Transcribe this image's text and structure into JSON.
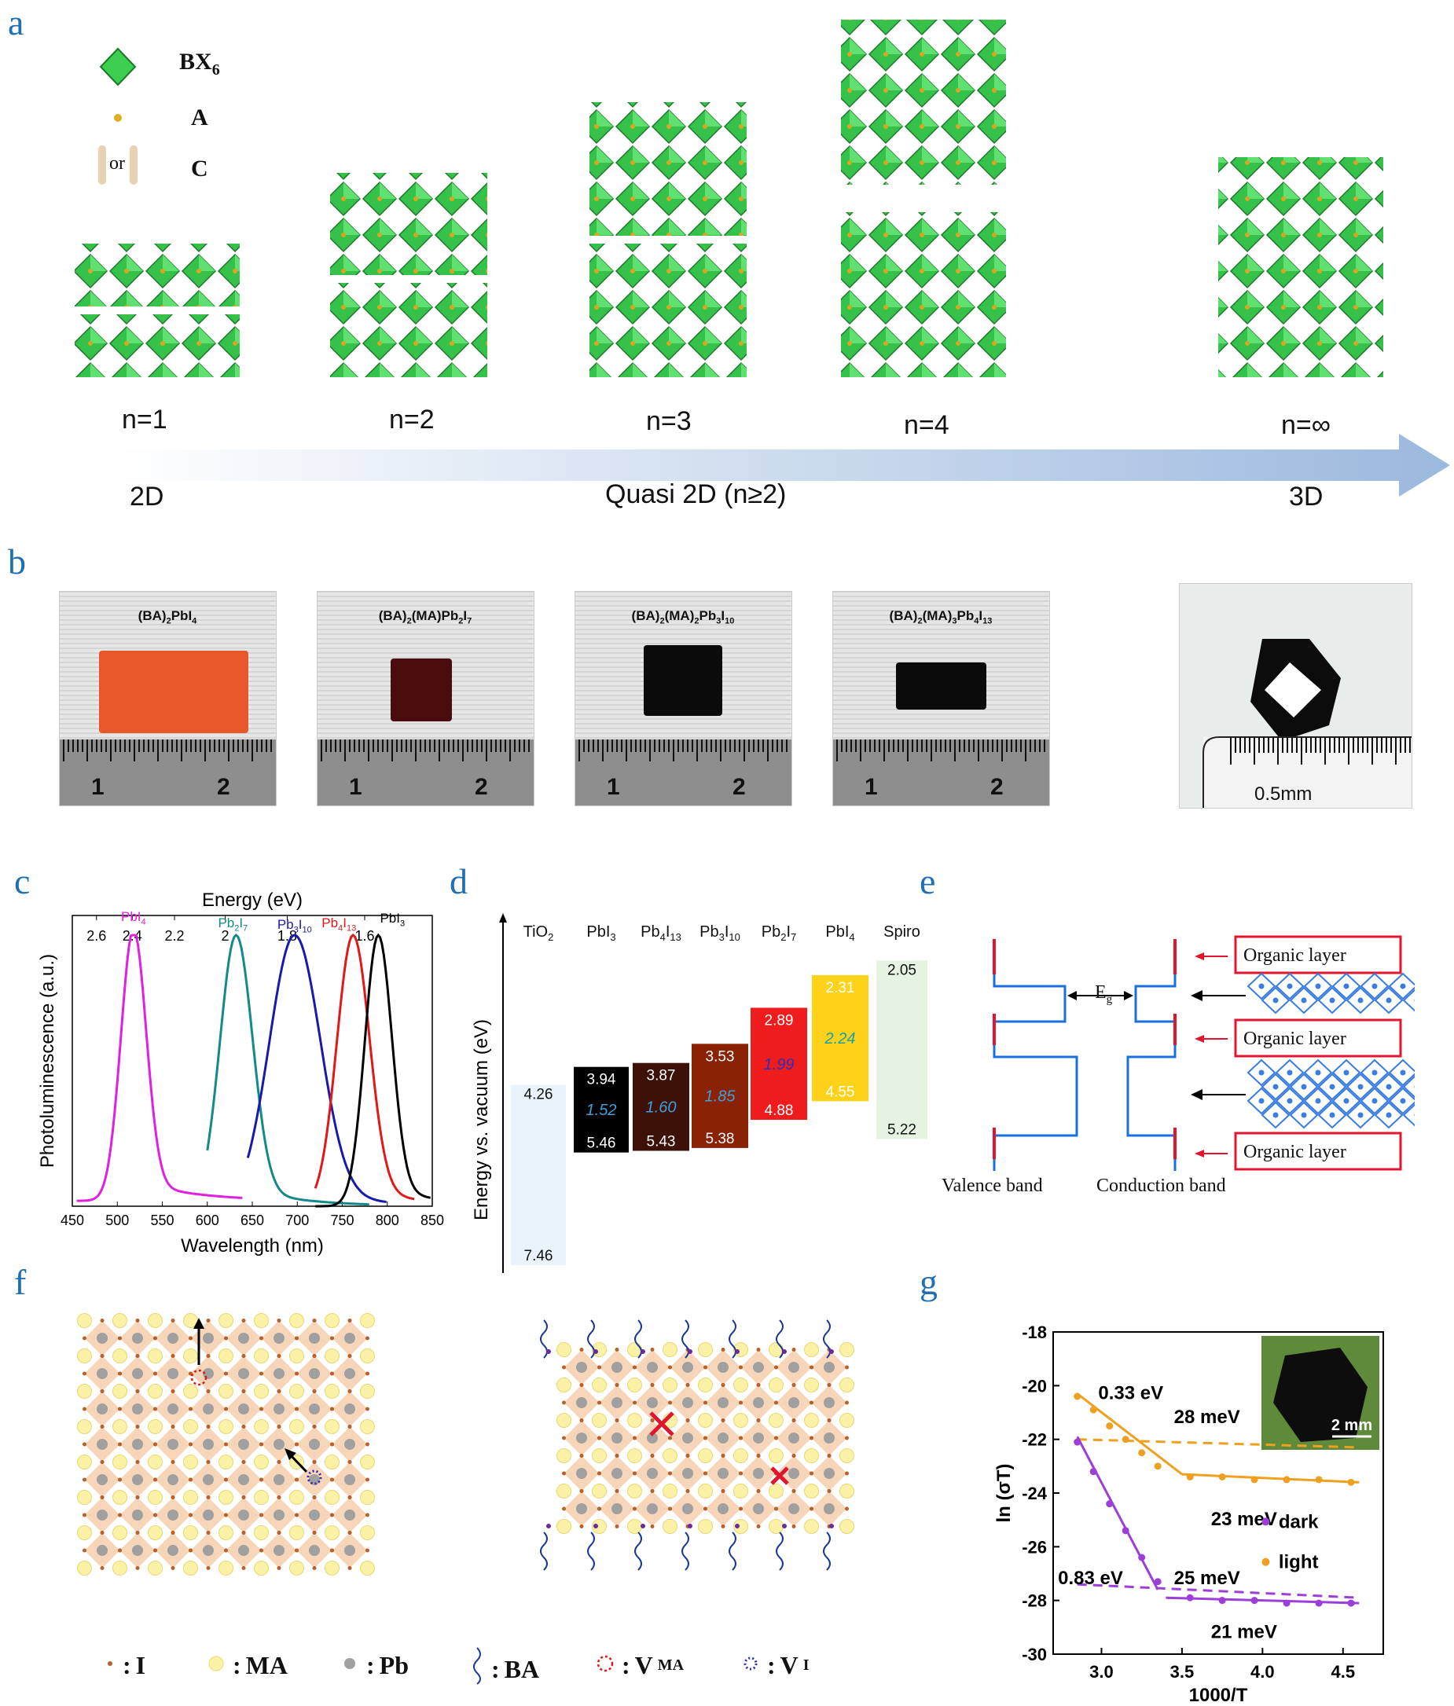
{
  "panel_labels": [
    "a",
    "b",
    "c",
    "d",
    "e",
    "f",
    "g"
  ],
  "a": {
    "legend": [
      {
        "sym": "BX",
        "sub": "6"
      },
      {
        "sym": "A",
        "sub": ""
      },
      {
        "sym": "C",
        "sub": "",
        "or_text": "or"
      }
    ],
    "structures": [
      "n=1",
      "n=2",
      "n=3",
      "n=4",
      "n=∞"
    ],
    "arrow_labels": {
      "left": "2D",
      "middle": "Quasi 2D (n≥2)",
      "right": "3D"
    }
  },
  "b": {
    "samples": [
      {
        "name_parts": [
          "(BA)",
          "2",
          "PbI",
          "4"
        ],
        "crystal_color": "#e8572a",
        "ruler": [
          "1",
          "2"
        ]
      },
      {
        "name_parts": [
          "(BA)",
          "2",
          "(MA)Pb",
          "2",
          "I",
          "7"
        ],
        "crystal_color": "#4a0c0c",
        "ruler": [
          "1",
          "2"
        ]
      },
      {
        "name_parts": [
          "(BA)",
          "2",
          "(MA)",
          "2",
          "Pb",
          "3",
          "I",
          "10"
        ],
        "crystal_color": "#0b0b0b",
        "ruler": [
          "1",
          "2"
        ]
      },
      {
        "name_parts": [
          "(BA)",
          "2",
          "(MA)",
          "3",
          "Pb",
          "4",
          "I",
          "13"
        ],
        "crystal_color": "#0b0b0b",
        "ruler": [
          "1",
          "2"
        ]
      }
    ],
    "scale_label": "0.5mm"
  },
  "c": {
    "chart_data": {
      "type": "line",
      "xlabel": "Wavelength (nm)",
      "ylabel": "Photoluminescence (a.u.)",
      "top_axis_label": "Energy (eV)",
      "xlim": [
        450,
        850
      ],
      "xticks": [
        450,
        500,
        550,
        600,
        650,
        700,
        750,
        800,
        850
      ],
      "top_ticks": [
        "2.6",
        "2.4",
        "2.2",
        "2",
        "1.8",
        "1.6"
      ],
      "top_tick_values": [
        2.6,
        2.4,
        2.2,
        2.0,
        1.8,
        1.6
      ],
      "series": [
        {
          "name": "PbI",
          "sub": "4",
          "color": "#e020e0",
          "peak": 518,
          "width": 14,
          "x_start": 455,
          "x_end": 640,
          "base": 0.02
        },
        {
          "name": "Pb",
          "sub": "2",
          "name2": "I",
          "sub2": "7",
          "color": "#138a8a",
          "peak": 632,
          "width": 18,
          "x_start": 600,
          "x_end": 780,
          "base": 0.0
        },
        {
          "name": "Pb",
          "sub": "3",
          "name2": "I",
          "sub2": "10",
          "color": "#1a1aa8",
          "peak": 697,
          "width": 28,
          "x_start": 645,
          "x_end": 800,
          "base": 0.0
        },
        {
          "name": "Pb",
          "sub": "4",
          "name2": "I",
          "sub2": "13",
          "color": "#e01818",
          "peak": 762,
          "width": 18,
          "x_start": 720,
          "x_end": 830,
          "base": 0.0
        },
        {
          "name": "PbI",
          "sub": "3",
          "color": "#000000",
          "peak": 790,
          "width": 15,
          "x_start": 720,
          "x_end": 848,
          "base": 0.0
        }
      ]
    }
  },
  "d": {
    "ylabel": "Energy vs. vacuum (eV)",
    "columns": [
      {
        "label": "TiO",
        "sub": "2",
        "top": "4.26",
        "mid": "",
        "bottom": "7.46",
        "top_val": 4.26,
        "bottom_val": 7.46,
        "color": "#eaf2fb"
      },
      {
        "label": "PbI",
        "sub": "3",
        "top": "3.94",
        "mid": "1.52",
        "bottom": "5.46",
        "top_val": 3.94,
        "bottom_val": 5.46,
        "color": "#000000"
      },
      {
        "label": "Pb",
        "sub": "4",
        "label2": "I",
        "sub2": "13",
        "top": "3.87",
        "mid": "1.60",
        "bottom": "5.43",
        "top_val": 3.87,
        "bottom_val": 5.43,
        "color": "#3d1008"
      },
      {
        "label": "Pb",
        "sub": "3",
        "label2": "I",
        "sub2": "10",
        "top": "3.53",
        "mid": "1.85",
        "bottom": "5.38",
        "top_val": 3.53,
        "bottom_val": 5.38,
        "color": "#8a2206"
      },
      {
        "label": "Pb",
        "sub": "2",
        "label2": "I",
        "sub2": "7",
        "top": "2.89",
        "mid": "1.99",
        "bottom": "4.88",
        "top_val": 2.89,
        "bottom_val": 4.88,
        "color": "#ee1c1c"
      },
      {
        "label": "PbI",
        "sub": "4",
        "top": "2.31",
        "mid": "2.24",
        "bottom": "4.55",
        "top_val": 2.31,
        "bottom_val": 4.55,
        "color": "#ffd21a"
      },
      {
        "label": "Spiro",
        "sub": "",
        "top": "2.05",
        "mid": "",
        "bottom": "5.22",
        "top_val": 2.05,
        "bottom_val": 5.22,
        "color": "#e6f3e3"
      }
    ]
  },
  "e": {
    "organic_label": "Organic layer",
    "eg_label": "E",
    "eg_sub": "g",
    "valence_label": "Valence band",
    "conduction_label": "Conduction band"
  },
  "f": {
    "legend": [
      {
        "sym": "I",
        "sub": ""
      },
      {
        "sym": "MA",
        "sub": ""
      },
      {
        "sym": "Pb",
        "sub": ""
      },
      {
        "sym": "BA",
        "sub": ""
      },
      {
        "sym": "V",
        "sub": "MA"
      },
      {
        "sym": "V",
        "sub": "I"
      }
    ]
  },
  "g": {
    "chart_data": {
      "type": "scatter",
      "xlabel": "1000/T",
      "ylabel": "ln (σT)",
      "xlim": [
        2.7,
        4.75
      ],
      "ylim": [
        -30,
        -18
      ],
      "xticks": [
        "3.0",
        "3.5",
        "4.0",
        "4.5"
      ],
      "xtick_values": [
        3.0,
        3.5,
        4.0,
        4.5
      ],
      "yticks": [
        "-18",
        "-20",
        "-22",
        "-24",
        "-26",
        "-28",
        "-30"
      ],
      "ytick_values": [
        -18,
        -20,
        -22,
        -24,
        -26,
        -28,
        -30
      ],
      "series": [
        {
          "name": "dark",
          "color": "#9b3fd8",
          "x": [
            2.85,
            2.95,
            3.05,
            3.15,
            3.25,
            3.35,
            3.55,
            3.75,
            3.95,
            4.15,
            4.35,
            4.55
          ],
          "y": [
            -22.1,
            -23.2,
            -24.4,
            -25.4,
            -26.4,
            -27.3,
            -27.9,
            -28.0,
            -28.0,
            -28.1,
            -28.1,
            -28.1
          ]
        },
        {
          "name": "light",
          "color": "#f0a020",
          "x": [
            2.85,
            2.95,
            3.05,
            3.15,
            3.25,
            3.35,
            3.55,
            3.75,
            3.95,
            4.15,
            4.35,
            4.55
          ],
          "y": [
            -20.4,
            -20.9,
            -21.5,
            -22.0,
            -22.5,
            -23.0,
            -23.4,
            -23.4,
            -23.5,
            -23.5,
            -23.5,
            -23.6
          ]
        }
      ],
      "annotations": [
        "0.33 eV",
        "28 meV",
        "23 meV",
        "0.83 eV",
        "25 meV",
        "21 meV"
      ],
      "inset_scale": "2 mm"
    }
  }
}
